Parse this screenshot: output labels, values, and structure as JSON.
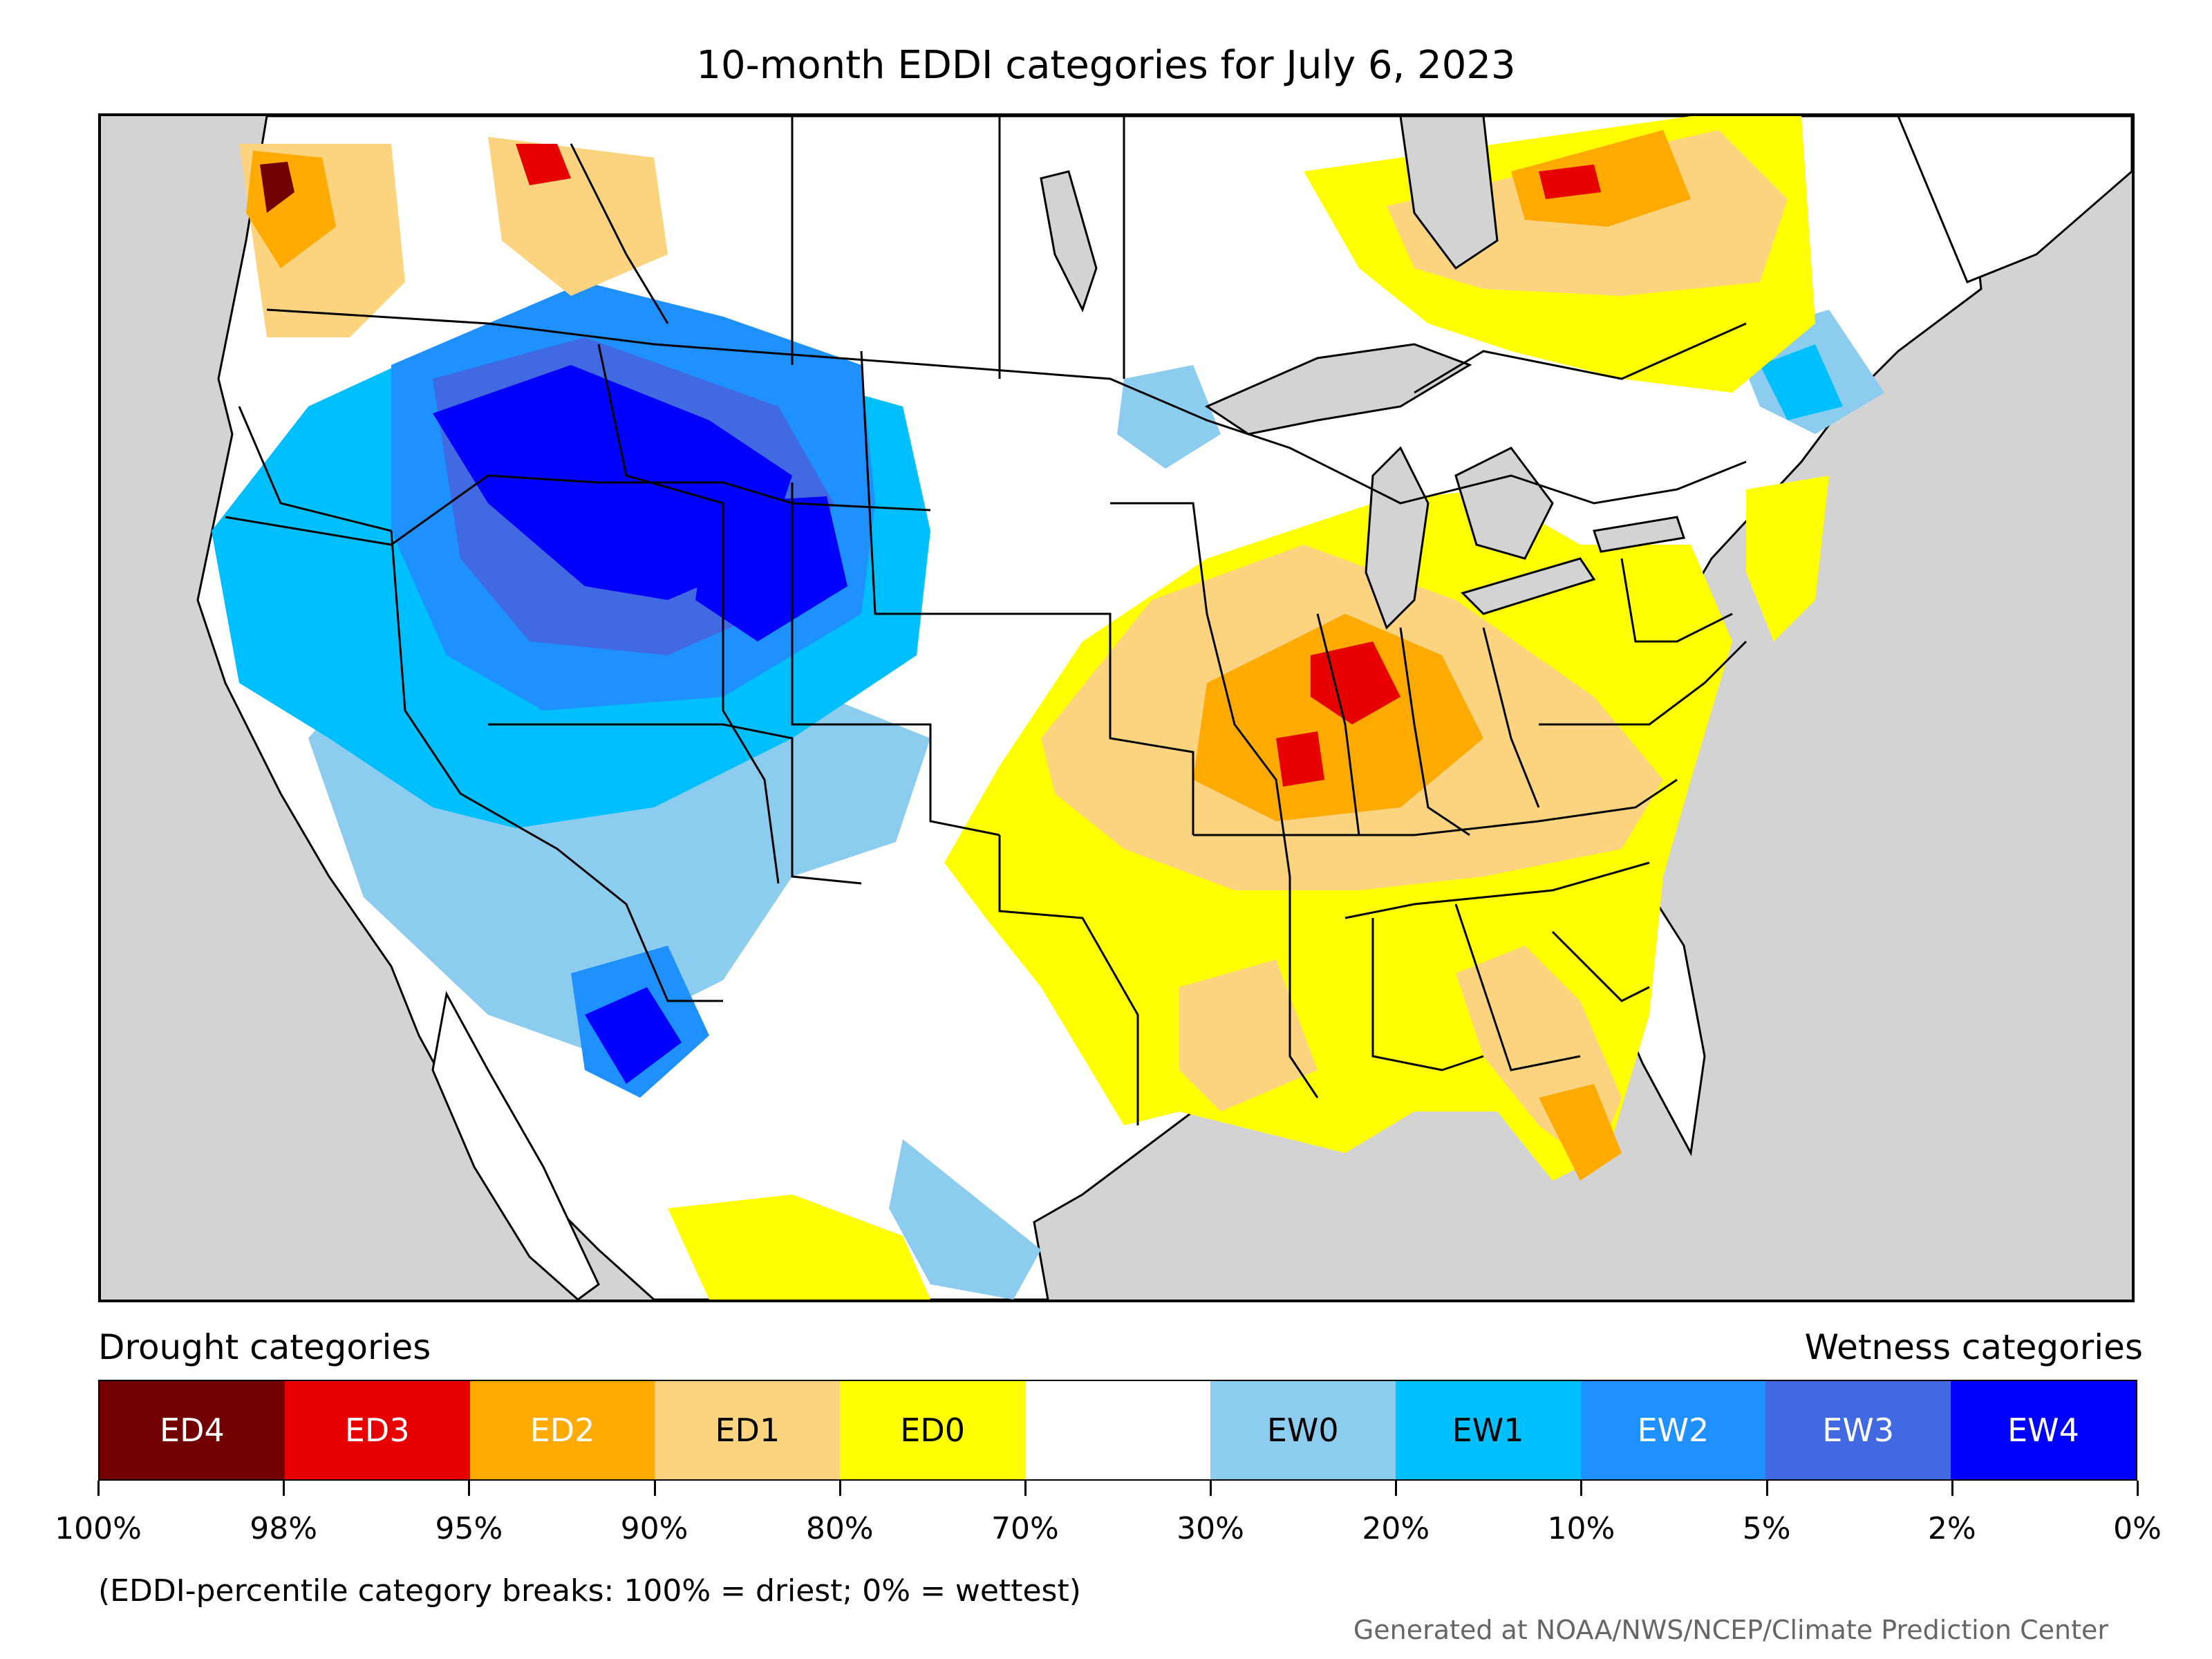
{
  "title": "10-month EDDI categories for July 6, 2023",
  "legend": {
    "drought_heading": "Drought categories",
    "wetness_heading": "Wetness categories",
    "categories": [
      {
        "label": "ED4",
        "color": "#730000",
        "text_color": "#ffffff"
      },
      {
        "label": "ED3",
        "color": "#e60000",
        "text_color": "#ffffff"
      },
      {
        "label": "ED2",
        "color": "#ffaa00",
        "text_color": "#ffffff"
      },
      {
        "label": "ED1",
        "color": "#fcd37f",
        "text_color": "#000000"
      },
      {
        "label": "ED0",
        "color": "#ffff00",
        "text_color": "#000000"
      },
      {
        "label": "",
        "color": "#ffffff",
        "text_color": "#000000"
      },
      {
        "label": "EW0",
        "color": "#8ccdef",
        "text_color": "#000000"
      },
      {
        "label": "EW1",
        "color": "#00bfff",
        "text_color": "#000000"
      },
      {
        "label": "EW2",
        "color": "#1e90ff",
        "text_color": "#ffffff"
      },
      {
        "label": "EW3",
        "color": "#4169e1",
        "text_color": "#ffffff"
      },
      {
        "label": "EW4",
        "color": "#0000ff",
        "text_color": "#ffffff"
      }
    ],
    "tick_labels": [
      "100%",
      "98%",
      "95%",
      "90%",
      "80%",
      "70%",
      "30%",
      "20%",
      "10%",
      "5%",
      "2%",
      "0%"
    ]
  },
  "note": "(EDDI-percentile category breaks: 100% = driest; 0% = wettest)",
  "credit": "Generated at NOAA/NWS/NCEP/Climate Prediction Center",
  "colors": {
    "ocean": "#d3d3d3",
    "land": "#ffffff",
    "border": "#000000"
  }
}
